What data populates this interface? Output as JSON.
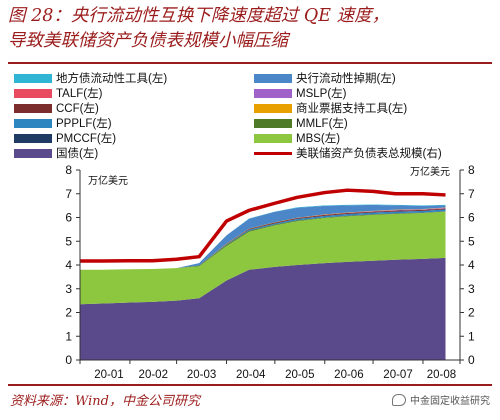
{
  "header": {
    "title_line1": "图 28：央行流动性互换下降速度超过 QE 速度，",
    "title_line2": "导致美联储资产负债表规模小幅压缩"
  },
  "footer": {
    "source": "资料来源：Wind，中金公司研究",
    "watermark": "中金固定收益研究"
  },
  "chart_data": {
    "type": "area",
    "x": [
      "2020-01-01",
      "2020-01-15",
      "2020-02-01",
      "2020-02-15",
      "2020-03-01",
      "2020-03-15",
      "2020-04-01",
      "2020-04-15",
      "2020-05-01",
      "2020-05-15",
      "2020-06-01",
      "2020-06-15",
      "2020-07-01",
      "2020-07-15",
      "2020-08-01",
      "2020-08-15"
    ],
    "x_tick_labels": [
      "20-01",
      "20-02",
      "20-03",
      "20-04",
      "20-05",
      "20-06",
      "20-07",
      "20-08"
    ],
    "left_axis": {
      "label": "万亿美元",
      "ylim": [
        0,
        8
      ],
      "ticks": [
        0,
        1,
        2,
        3,
        4,
        5,
        6,
        7,
        8
      ]
    },
    "right_axis": {
      "label": "万亿美元",
      "ylim": [
        0,
        8
      ],
      "ticks": [
        0,
        1,
        2,
        3,
        4,
        5,
        6,
        7,
        8
      ]
    },
    "grid": false,
    "legend_placement": "top",
    "series": [
      {
        "name": "国债(左)",
        "color": "#5b4a8b",
        "values": [
          2.35,
          2.38,
          2.42,
          2.45,
          2.5,
          2.6,
          3.35,
          3.8,
          3.92,
          4.0,
          4.08,
          4.13,
          4.18,
          4.22,
          4.26,
          4.3
        ]
      },
      {
        "name": "MBS(左)",
        "color": "#8dc63f",
        "values": [
          1.45,
          1.42,
          1.4,
          1.38,
          1.37,
          1.35,
          1.45,
          1.6,
          1.75,
          1.85,
          1.9,
          1.92,
          1.93,
          1.93,
          1.93,
          1.95
        ]
      },
      {
        "name": "MMLF(左)",
        "color": "#4f7a28",
        "values": [
          0,
          0,
          0,
          0,
          0,
          0.03,
          0.05,
          0.04,
          0.03,
          0.03,
          0.02,
          0.02,
          0.02,
          0.02,
          0.01,
          0.01
        ]
      },
      {
        "name": "PMCCF(左)",
        "color": "#1f3a63",
        "values": [
          0,
          0,
          0,
          0,
          0,
          0,
          0,
          0,
          0,
          0,
          0,
          0.01,
          0.01,
          0.01,
          0.01,
          0.01
        ]
      },
      {
        "name": "PPPLF(左)",
        "color": "#2e86c1",
        "values": [
          0,
          0,
          0,
          0,
          0,
          0,
          0.02,
          0.05,
          0.05,
          0.06,
          0.07,
          0.07,
          0.07,
          0.07,
          0.07,
          0.07
        ]
      },
      {
        "name": "CCF(左)",
        "color": "#7b2c2c",
        "values": [
          0,
          0,
          0,
          0,
          0,
          0,
          0.02,
          0.03,
          0.04,
          0.04,
          0.04,
          0.04,
          0.04,
          0.04,
          0.04,
          0.04
        ]
      },
      {
        "name": "MSLP(左)",
        "color": "#a062c8",
        "values": [
          0,
          0,
          0,
          0,
          0,
          0,
          0,
          0,
          0,
          0,
          0,
          0,
          0.01,
          0.02,
          0.02,
          0.02
        ]
      },
      {
        "name": "TALF(左)",
        "color": "#e84a5f",
        "values": [
          0,
          0,
          0,
          0,
          0,
          0,
          0,
          0,
          0,
          0,
          0.01,
          0.01,
          0.01,
          0.01,
          0.01,
          0.01
        ]
      },
      {
        "name": "商业票据支持工具(左)",
        "color": "#e8a000",
        "values": [
          0,
          0,
          0,
          0,
          0,
          0,
          0.01,
          0.01,
          0.01,
          0.01,
          0.01,
          0.01,
          0.01,
          0.01,
          0.01,
          0.01
        ]
      },
      {
        "name": "央行流动性掉期(左)",
        "color": "#4a86c8",
        "values": [
          0,
          0,
          0,
          0,
          0,
          0.1,
          0.35,
          0.42,
          0.44,
          0.42,
          0.36,
          0.3,
          0.25,
          0.18,
          0.13,
          0.09
        ]
      },
      {
        "name": "地方债流动性工具(左)",
        "color": "#31b5d4",
        "values": [
          0,
          0,
          0,
          0,
          0,
          0,
          0,
          0.01,
          0.01,
          0.02,
          0.02,
          0.02,
          0.02,
          0.02,
          0.02,
          0.02
        ]
      }
    ],
    "line_series": {
      "name": "美联储资产负债表总规模(右)",
      "color": "#c00000",
      "values": [
        4.17,
        4.17,
        4.18,
        4.18,
        4.24,
        4.35,
        5.85,
        6.3,
        6.6,
        6.85,
        7.05,
        7.15,
        7.1,
        7.0,
        7.0,
        6.95
      ]
    },
    "legend_order": [
      [
        "地方债流动性工具(左)",
        "央行流动性掉期(左)"
      ],
      [
        "TALF(左)",
        "MSLP(左)"
      ],
      [
        "CCF(左)",
        "商业票据支持工具(左)"
      ],
      [
        "PPPLF(左)",
        "MMLF(左)"
      ],
      [
        "PMCCF(左)",
        "MBS(左)"
      ],
      [
        "国债(左)",
        "美联储资产负债表总规模(右)"
      ]
    ]
  }
}
